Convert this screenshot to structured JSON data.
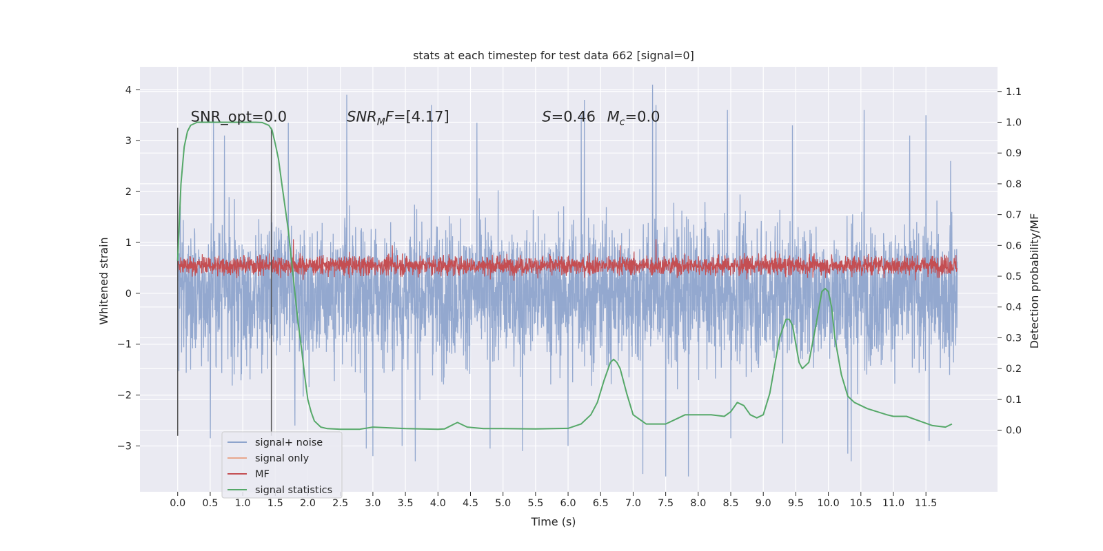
{
  "chart_data": {
    "type": "line",
    "title": "stats at each timestep for test data 662 [signal=0]",
    "xlabel": "Time (s)",
    "ylabel_left": "Whitened strain",
    "ylabel_right": "Detection probability/MF",
    "xlim": [
      -0.58,
      12.6
    ],
    "ylim_left": [
      -3.9,
      4.45
    ],
    "ylim_right": [
      -0.2,
      1.18
    ],
    "x_ticks": [
      "0.0",
      "0.5",
      "1.0",
      "1.5",
      "2.0",
      "2.5",
      "3.0",
      "3.5",
      "4.0",
      "4.5",
      "5.0",
      "5.5",
      "6.0",
      "6.5",
      "7.0",
      "7.5",
      "8.0",
      "8.5",
      "9.0",
      "9.5",
      "10.0",
      "10.5",
      "11.0",
      "11.5"
    ],
    "x_tick_values": [
      0.0,
      0.5,
      1.0,
      1.5,
      2.0,
      2.5,
      3.0,
      3.5,
      4.0,
      4.5,
      5.0,
      5.5,
      6.0,
      6.5,
      7.0,
      7.5,
      8.0,
      8.5,
      9.0,
      9.5,
      10.0,
      10.5,
      11.0,
      11.5
    ],
    "y_left_ticks": [
      "4",
      "3",
      "2",
      "1",
      "0",
      "−1",
      "−2",
      "−3"
    ],
    "y_left_tick_values": [
      4,
      3,
      2,
      1,
      0,
      -1,
      -2,
      -3
    ],
    "y_right_ticks": [
      "1.1",
      "1.0",
      "0.9",
      "0.8",
      "0.7",
      "0.6",
      "0.5",
      "0.4",
      "0.3",
      "0.2",
      "0.1",
      "0.0"
    ],
    "y_right_tick_values": [
      1.1,
      1.0,
      0.9,
      0.8,
      0.7,
      0.6,
      0.5,
      0.4,
      0.3,
      0.2,
      0.1,
      0.0
    ],
    "grid": true,
    "legend_position": "bottom-left",
    "annotations": [
      {
        "text": "SNR_opt=0.0",
        "x": 0.2,
        "y_right": 1.0
      },
      {
        "base": "SNR",
        "sub": "M",
        "rest": "F=[4.17]",
        "x": 2.6,
        "y_right": 1.0
      },
      {
        "base": "S",
        "rest": "=0.46",
        "x": 5.6,
        "y_right": 1.0
      },
      {
        "base": "M",
        "sub": "c",
        "rest": "=0.0",
        "x": 6.6,
        "y_right": 1.0
      }
    ],
    "vertical_markers": [
      {
        "x": 0.0,
        "y_left": [
          -2.8,
          3.25
        ]
      },
      {
        "x": 1.44,
        "y_left": [
          -2.8,
          3.25
        ]
      }
    ],
    "series": [
      {
        "name": "signal+ noise",
        "color": "#8ea4cc",
        "axis": "left",
        "x_range": [
          0.0,
          11.98
        ],
        "typical_range": [
          -2.3,
          2.4
        ],
        "peaks_up": [
          [
            0.55,
            3.4
          ],
          [
            0.72,
            3.1
          ],
          [
            1.7,
            3.35
          ],
          [
            2.6,
            3.9
          ],
          [
            3.9,
            3.7
          ],
          [
            4.6,
            3.35
          ],
          [
            6.25,
            3.8
          ],
          [
            6.2,
            3.5
          ],
          [
            7.3,
            4.1
          ],
          [
            7.35,
            3.7
          ],
          [
            8.45,
            3.6
          ],
          [
            9.45,
            3.3
          ],
          [
            10.55,
            3.6
          ],
          [
            11.25,
            3.1
          ],
          [
            11.5,
            3.5
          ],
          [
            11.88,
            2.6
          ]
        ],
        "peaks_down": [
          [
            0.5,
            -2.85
          ],
          [
            1.8,
            -2.6
          ],
          [
            2.9,
            -3.05
          ],
          [
            3.0,
            -3.2
          ],
          [
            3.45,
            -3.0
          ],
          [
            3.65,
            -3.3
          ],
          [
            4.8,
            -3.05
          ],
          [
            5.3,
            -3.1
          ],
          [
            6.0,
            -3.0
          ],
          [
            7.15,
            -3.55
          ],
          [
            7.5,
            -3.6
          ],
          [
            7.85,
            -3.6
          ],
          [
            8.5,
            -2.85
          ],
          [
            9.3,
            -2.95
          ],
          [
            10.3,
            -3.15
          ],
          [
            10.35,
            -3.3
          ],
          [
            11.55,
            -2.9
          ]
        ]
      },
      {
        "name": "signal only",
        "color": "#e8a68c",
        "axis": "left",
        "x": [],
        "y": []
      },
      {
        "name": "MF",
        "color": "#c44e52",
        "axis": "right",
        "x_range": [
          0.0,
          11.98
        ],
        "typical_range": [
          0.5,
          0.57
        ],
        "min": 0.46,
        "peaks_up": [
          [
            1.78,
            0.62
          ],
          [
            3.3,
            0.6
          ],
          [
            6.8,
            0.6
          ],
          [
            7.35,
            0.62
          ]
        ]
      },
      {
        "name": "signal statistics",
        "color": "#55a868",
        "axis": "right",
        "x": [
          0.0,
          0.05,
          0.1,
          0.15,
          0.2,
          0.3,
          0.45,
          0.6,
          0.8,
          1.0,
          1.2,
          1.3,
          1.4,
          1.45,
          1.5,
          1.55,
          1.6,
          1.7,
          1.75,
          1.8,
          1.85,
          1.9,
          1.95,
          2.0,
          2.05,
          2.1,
          2.2,
          2.3,
          2.5,
          2.8,
          3.0,
          3.5,
          4.0,
          4.1,
          4.25,
          4.3,
          4.45,
          4.7,
          5.0,
          5.5,
          6.0,
          6.2,
          6.35,
          6.45,
          6.55,
          6.65,
          6.7,
          6.75,
          6.8,
          6.9,
          7.0,
          7.2,
          7.5,
          7.7,
          7.8,
          8.0,
          8.2,
          8.4,
          8.5,
          8.6,
          8.7,
          8.8,
          8.9,
          9.0,
          9.1,
          9.15,
          9.25,
          9.35,
          9.4,
          9.45,
          9.5,
          9.55,
          9.6,
          9.7,
          9.8,
          9.9,
          9.95,
          10.0,
          10.05,
          10.1,
          10.2,
          10.3,
          10.4,
          10.6,
          10.9,
          11.0,
          11.2,
          11.4,
          11.6,
          11.8,
          11.9
        ],
        "y": [
          0.55,
          0.8,
          0.92,
          0.97,
          0.99,
          1.0,
          1.0,
          1.0,
          1.0,
          1.0,
          1.0,
          0.999,
          0.99,
          0.975,
          0.93,
          0.88,
          0.8,
          0.65,
          0.55,
          0.45,
          0.35,
          0.27,
          0.18,
          0.1,
          0.06,
          0.03,
          0.01,
          0.005,
          0.003,
          0.003,
          0.01,
          0.005,
          0.003,
          0.004,
          0.02,
          0.025,
          0.01,
          0.005,
          0.005,
          0.004,
          0.006,
          0.02,
          0.05,
          0.09,
          0.16,
          0.22,
          0.23,
          0.22,
          0.2,
          0.12,
          0.05,
          0.02,
          0.02,
          0.04,
          0.05,
          0.05,
          0.05,
          0.045,
          0.06,
          0.09,
          0.08,
          0.05,
          0.04,
          0.05,
          0.12,
          0.18,
          0.3,
          0.36,
          0.36,
          0.34,
          0.28,
          0.22,
          0.2,
          0.22,
          0.33,
          0.45,
          0.46,
          0.45,
          0.4,
          0.3,
          0.18,
          0.11,
          0.09,
          0.07,
          0.05,
          0.045,
          0.045,
          0.03,
          0.015,
          0.01,
          0.02
        ]
      }
    ]
  }
}
